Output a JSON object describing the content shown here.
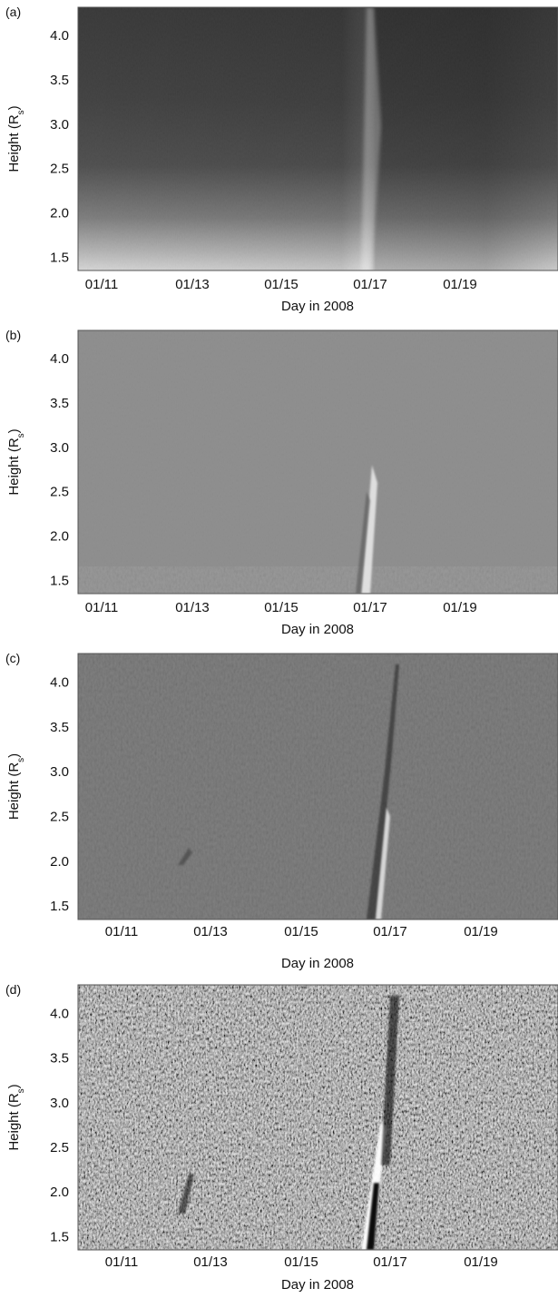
{
  "chart_data": [
    {
      "type": "heatmap",
      "panel_label": "(a)",
      "xlabel": "Day in 2008",
      "ylabel": {
        "main": "Height (R",
        "sub": "s",
        "close": ")"
      },
      "y_ticks": [
        "4.0",
        "3.5",
        "3.0",
        "2.5",
        "2.0",
        "1.5"
      ],
      "x_ticks": [
        "01/11",
        "01/13",
        "01/15",
        "01/17",
        "01/19"
      ],
      "grid": false,
      "colormap": "grayscale"
    },
    {
      "type": "heatmap",
      "panel_label": "(b)",
      "xlabel": "Day in 2008",
      "ylabel": {
        "main": "Height (R",
        "sub": "s",
        "close": ")"
      },
      "y_ticks": [
        "4.0",
        "3.5",
        "3.0",
        "2.5",
        "2.0",
        "1.5"
      ],
      "x_ticks": [
        "01/11",
        "01/13",
        "01/15",
        "01/17",
        "01/19"
      ],
      "grid": false,
      "colormap": "grayscale"
    },
    {
      "type": "heatmap",
      "panel_label": "(c)",
      "xlabel": "Day in 2008",
      "ylabel": {
        "main": "Height (R",
        "sub": "s",
        "close": ")"
      },
      "y_ticks": [
        "4.0",
        "3.5",
        "3.0",
        "2.5",
        "2.0",
        "1.5"
      ],
      "x_ticks": [
        "01/11",
        "01/13",
        "01/15",
        "01/17",
        "01/19"
      ],
      "grid": false,
      "colormap": "grayscale"
    },
    {
      "type": "heatmap",
      "panel_label": "(d)",
      "xlabel": "Day in 2008",
      "ylabel": {
        "main": "Height (R",
        "sub": "s",
        "close": ")"
      },
      "y_ticks": [
        "4.0",
        "3.5",
        "3.0",
        "2.5",
        "2.0",
        "1.5"
      ],
      "x_ticks": [
        "01/11",
        "01/13",
        "01/15",
        "01/17",
        "01/19"
      ],
      "grid": false,
      "colormap": "grayscale"
    }
  ]
}
